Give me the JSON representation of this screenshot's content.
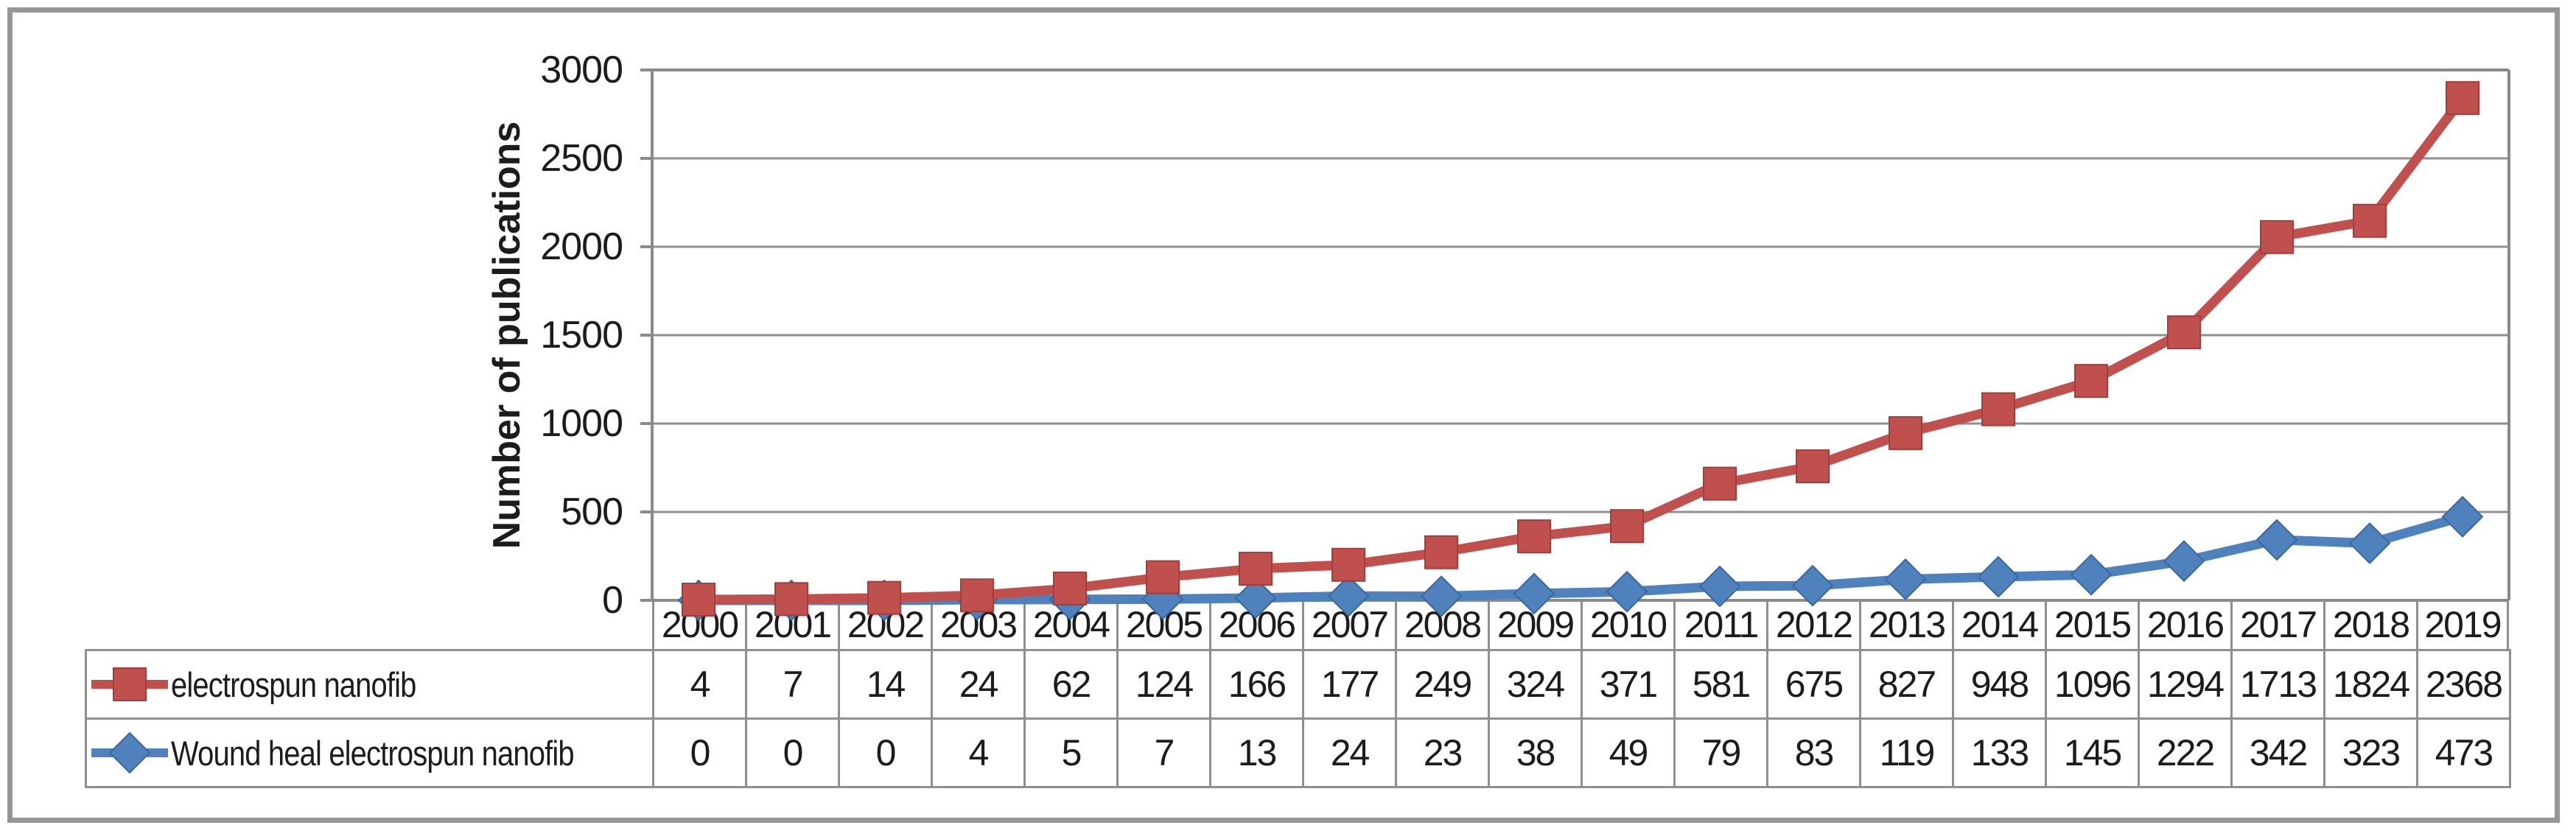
{
  "chart_data": {
    "type": "line",
    "stacked": true,
    "title": "",
    "xlabel": "",
    "ylabel": "Number of publications",
    "ylim": [
      0,
      3000
    ],
    "yticks": [
      0,
      500,
      1000,
      1500,
      2000,
      2500,
      3000
    ],
    "grid": "horizontal",
    "legend_position": "table-left",
    "categories": [
      "2000",
      "2001",
      "2002",
      "2003",
      "2004",
      "2005",
      "2006",
      "2007",
      "2008",
      "2009",
      "2010",
      "2011",
      "2012",
      "2013",
      "2014",
      "2015",
      "2016",
      "2017",
      "2018",
      "2019"
    ],
    "series": [
      {
        "name": "electrospun nanofib",
        "marker": "square",
        "color": "#C0504D",
        "marker_stroke": "#A03E3B",
        "values": [
          4,
          7,
          14,
          24,
          62,
          124,
          166,
          177,
          249,
          324,
          371,
          581,
          675,
          827,
          948,
          1096,
          1294,
          1713,
          1824,
          2368
        ]
      },
      {
        "name": "Wound heal electrospun nanofib",
        "marker": "diamond",
        "color": "#4F81BD",
        "marker_stroke": "#39679E",
        "values": [
          0,
          0,
          0,
          4,
          5,
          7,
          13,
          24,
          23,
          38,
          49,
          79,
          83,
          119,
          133,
          145,
          222,
          342,
          323,
          473
        ]
      }
    ]
  },
  "styles": {
    "grid_color": "#909090",
    "axis_color": "#8a8a8a",
    "table_border_color": "#8f8f8f",
    "text_color": "#1c1c1c",
    "frame_color": "#969696",
    "background": "#ffffff"
  }
}
